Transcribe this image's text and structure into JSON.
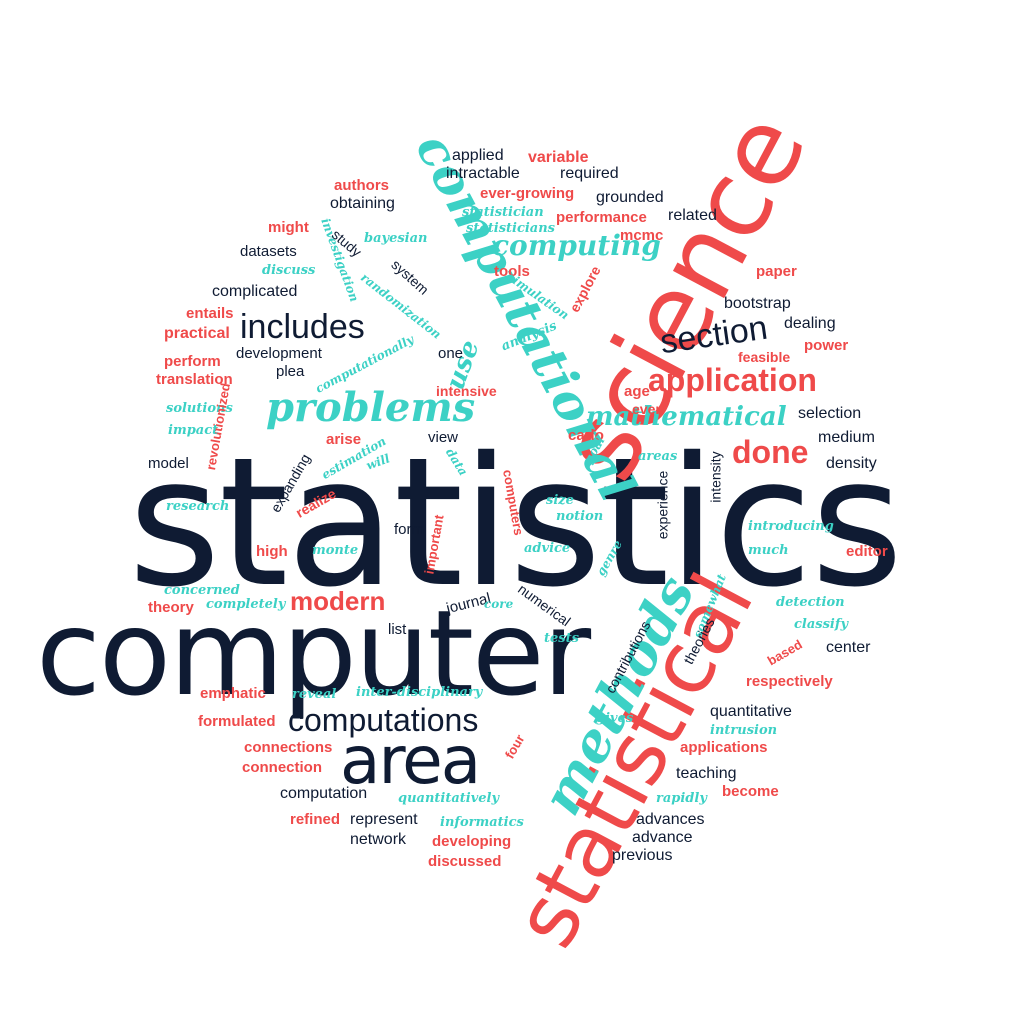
{
  "colors": {
    "navy": "#0f1b33",
    "red": "#ef4a4a",
    "teal": "#3cd1c5",
    "background": "#ffffff"
  },
  "words": {
    "statistics": "statistics",
    "computer": "computer",
    "science": "science",
    "statistical": "statistical",
    "computational": "computational",
    "methods": "methods",
    "area": "area",
    "computations": "computations",
    "problems": "problems",
    "application": "application",
    "includes": "includes",
    "section": "section",
    "computing": "computing",
    "mathematical": "mathematical",
    "done": "done",
    "modern": "modern",
    "use": "use",
    "applied": "applied",
    "variable": "variable",
    "intractable": "intractable",
    "required": "required",
    "authors": "authors",
    "ever_growing": "ever-growing",
    "grounded": "grounded",
    "obtaining": "obtaining",
    "statistician": "statistician",
    "performance": "performance",
    "related": "related",
    "might": "might",
    "statisticians": "statisticians",
    "mcmc": "mcmc",
    "investigation": "investigation",
    "bayesian": "bayesian",
    "study": "study",
    "datasets": "datasets",
    "discuss": "discuss",
    "system": "system",
    "tools": "tools",
    "explore": "explore",
    "paper": "paper",
    "complicated": "complicated",
    "randomization": "randomization",
    "simulation": "simulation",
    "bootstrap": "bootstrap",
    "entails": "entails",
    "dealing": "dealing",
    "practical": "practical",
    "analysis": "analysis",
    "development": "development",
    "one": "one",
    "power": "power",
    "perform": "perform",
    "computationally": "computationally",
    "feasible": "feasible",
    "plea": "plea",
    "translation": "translation",
    "intensive": "intensive",
    "age": "age",
    "solutions": "solutions",
    "even": "even",
    "selection": "selection",
    "revolutionized": "revolutionized",
    "impact": "impact",
    "arise": "arise",
    "view": "view",
    "carlo": "carlo",
    "medium": "medium",
    "estimation": "estimation",
    "goal": "goal",
    "model": "model",
    "will": "will",
    "data": "data",
    "areas": "areas",
    "intensity": "intensity",
    "density": "density",
    "expanding": "expanding",
    "computers": "computers",
    "experience": "experience",
    "research": "research",
    "realize": "realize",
    "size": "size",
    "notion": "notion",
    "introducing": "introducing",
    "form": "form",
    "important": "important",
    "high": "high",
    "monte": "monte",
    "advice": "advice",
    "much": "much",
    "editor": "editor",
    "genre": "genre",
    "concerned": "concerned",
    "theory": "theory",
    "completely": "completely",
    "journal": "journal",
    "core": "core",
    "somewhat": "somewhat",
    "detection": "detection",
    "numerical": "numerical",
    "classify": "classify",
    "list": "list",
    "tests": "tests",
    "contributions": "contributions",
    "theories": "theories",
    "based": "based",
    "center": "center",
    "emphatic": "emphatic",
    "reveal": "reveal",
    "inter_disciplinary": "inter-disciplinary",
    "respectively": "respectively",
    "formulated": "formulated",
    "gives": "gives",
    "quantitative": "quantitative",
    "intrusion": "intrusion",
    "connections": "connections",
    "four": "four",
    "applications": "applications",
    "connection": "connection",
    "teaching": "teaching",
    "computation": "computation",
    "quantitatively": "quantitatively",
    "rapidly": "rapidly",
    "become": "become",
    "refined": "refined",
    "represent": "represent",
    "informatics": "informatics",
    "advances": "advances",
    "network": "network",
    "developing": "developing",
    "advance": "advance",
    "discussed": "discussed",
    "previous": "previous"
  }
}
